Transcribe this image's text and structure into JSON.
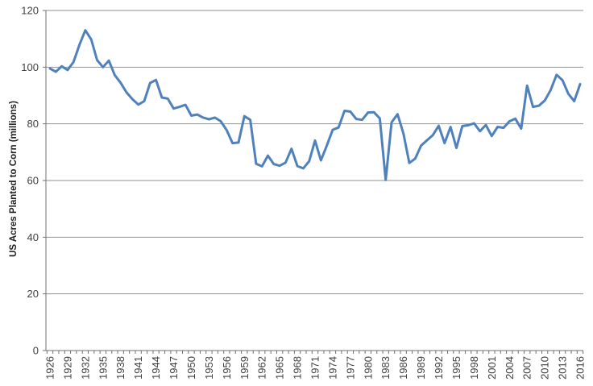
{
  "chart_data": {
    "type": "line",
    "title": "",
    "xlabel": "",
    "ylabel": "US Acres Planted to Corn (millions)",
    "x_start": 1926,
    "x_end": 2016,
    "x_tick_labels": [
      "1926",
      "1929",
      "1932",
      "1935",
      "1938",
      "1941",
      "1944",
      "1947",
      "1950",
      "1953",
      "1956",
      "1959",
      "1962",
      "1965",
      "1968",
      "1971",
      "1974",
      "1977",
      "1980",
      "1983",
      "1986",
      "1989",
      "1992",
      "1995",
      "1998",
      "2001",
      "2004",
      "2007",
      "2010",
      "2013",
      "2016"
    ],
    "y_ticks": [
      0,
      20,
      40,
      60,
      80,
      100,
      120
    ],
    "ylim": [
      0,
      120
    ],
    "grid": "horizontal",
    "legend": "none",
    "series": [
      {
        "name": "US acres planted to corn",
        "color": "#4F81BD",
        "values": [
          99.5,
          98.4,
          100.3,
          99.0,
          101.8,
          107.9,
          113.0,
          109.8,
          102.5,
          100.0,
          102.3,
          97.2,
          94.5,
          91.1,
          88.7,
          86.8,
          88.0,
          94.4,
          95.5,
          89.3,
          88.9,
          85.4,
          86.0,
          86.7,
          82.9,
          83.3,
          82.2,
          81.6,
          82.2,
          80.9,
          77.8,
          73.2,
          73.4,
          82.7,
          81.4,
          65.9,
          65.0,
          68.8,
          65.8,
          65.2,
          66.3,
          71.2,
          65.1,
          64.3,
          66.8,
          74.1,
          67.1,
          72.3,
          77.9,
          78.7,
          84.6,
          84.3,
          81.7,
          81.4,
          84.0,
          84.1,
          81.9,
          60.2,
          80.5,
          83.4,
          76.6,
          66.2,
          67.7,
          72.3,
          74.2,
          76.0,
          79.3,
          73.2,
          78.9,
          71.5,
          79.2,
          79.5,
          80.2,
          77.4,
          79.6,
          75.7,
          78.9,
          78.6,
          80.9,
          81.8,
          78.3,
          93.5,
          86.0,
          86.4,
          88.2,
          91.9,
          97.3,
          95.4,
          90.6,
          88.0,
          94.0
        ]
      }
    ],
    "colors": {
      "line": "#4F81BD",
      "gridline": "#929292",
      "axis": "#707070",
      "tick_label": "#3f3f3f",
      "background": "#ffffff"
    }
  }
}
